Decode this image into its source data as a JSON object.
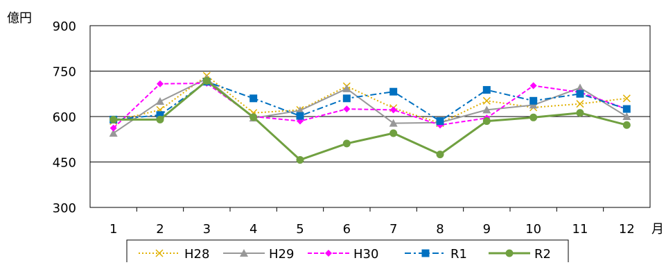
{
  "chart_data": {
    "type": "line",
    "title": "",
    "ylabel": "億円",
    "xlabel": "月",
    "categories": [
      "1",
      "2",
      "3",
      "4",
      "5",
      "6",
      "7",
      "8",
      "9",
      "10",
      "11",
      "12"
    ],
    "ylim": [
      300,
      900
    ],
    "yticks": [
      300,
      450,
      600,
      750,
      900
    ],
    "grid": "horizontal",
    "legend": "bottom",
    "series": [
      {
        "name": "H28",
        "color": "#E0B000",
        "dash": "dotted",
        "marker": "x",
        "values": [
          585,
          622,
          735,
          612,
          622,
          700,
          628,
          578,
          652,
          630,
          642,
          660
        ]
      },
      {
        "name": "H29",
        "color": "#989898",
        "dash": "solid",
        "marker": "triangle",
        "values": [
          545,
          650,
          725,
          595,
          620,
          692,
          578,
          580,
          622,
          638,
          695,
          600
        ]
      },
      {
        "name": "H30",
        "color": "#FF00FF",
        "dash": "dashed",
        "marker": "diamond",
        "values": [
          562,
          708,
          710,
          600,
          585,
          625,
          622,
          572,
          595,
          702,
          680,
          625
        ]
      },
      {
        "name": "R1",
        "color": "#0070C0",
        "dash": "dashdot",
        "marker": "square",
        "values": [
          590,
          605,
          715,
          660,
          602,
          660,
          682,
          585,
          688,
          652,
          675,
          625
        ]
      },
      {
        "name": "R2",
        "color": "#70A040",
        "dash": "solid",
        "marker": "circle",
        "values": [
          590,
          590,
          718,
          598,
          457,
          511,
          545,
          475,
          585,
          597,
          612,
          572
        ]
      }
    ]
  }
}
